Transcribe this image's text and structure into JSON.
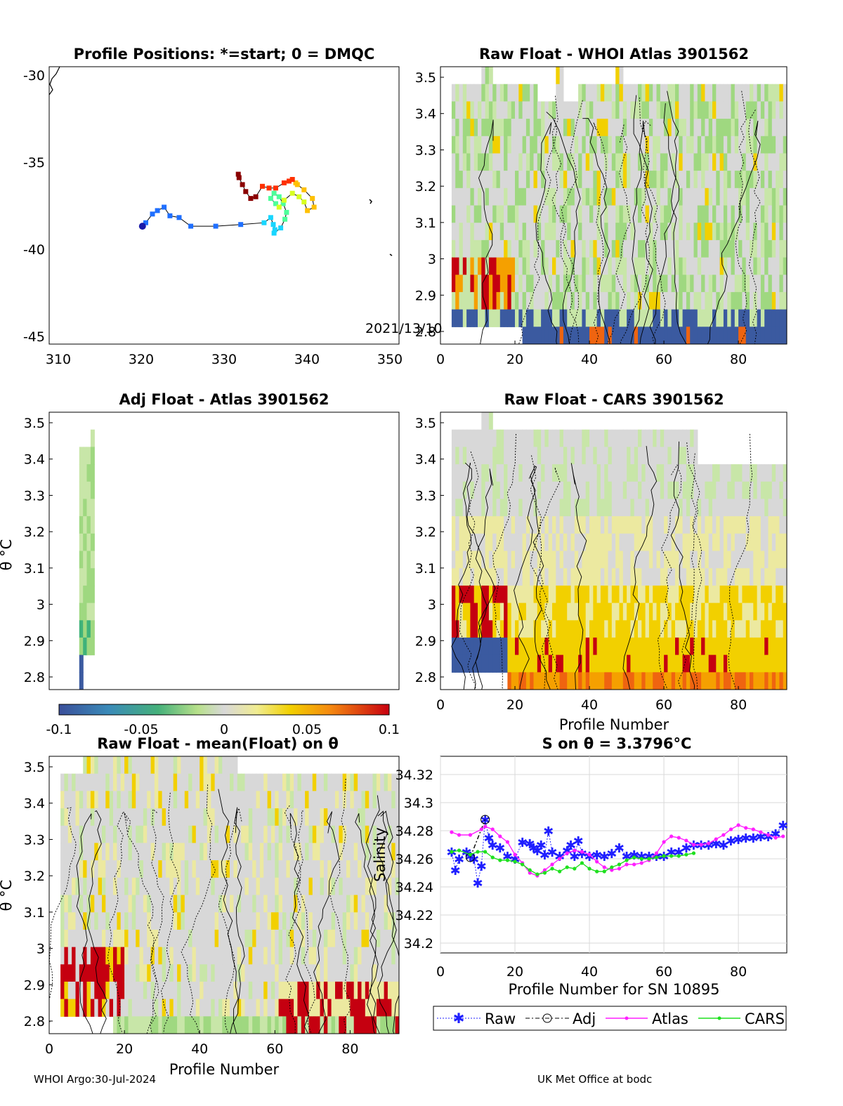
{
  "footer": {
    "left": "WHOI Argo:30-Jul-2024",
    "right": "UK Met Office at bodc"
  },
  "panels": {
    "map": {
      "title": "Profile Positions: *=start; 0 = DMQC",
      "xticks": [
        "310",
        "320",
        "330",
        "340",
        "350"
      ],
      "yticks": [
        "-30",
        "-35",
        "-40",
        "-45"
      ],
      "annotation": "2021/13/10"
    },
    "whoi": {
      "title": "Raw Float - WHOI Atlas  3901562"
    },
    "adj": {
      "title": "Adj Float - Atlas  3901562",
      "ylabel": "θ °C"
    },
    "cars": {
      "title": "Raw Float - CARS  3901562",
      "xlabel": "Profile Number"
    },
    "mean": {
      "title": "Raw Float - mean(Float) on θ",
      "ylabel": "θ °C",
      "xlabel": "Profile Number"
    },
    "sal": {
      "title": "S on θ = 3.3796°C",
      "ylabel": "Salinity",
      "xlabel": "Profile Number for SN 10895"
    }
  },
  "theta_ticks": [
    "3.5",
    "3.4",
    "3.3",
    "3.2",
    "3.1",
    "3",
    "2.9",
    "2.8"
  ],
  "profile_ticks": [
    "0",
    "20",
    "40",
    "60",
    "80"
  ],
  "colorbar": {
    "ticks": [
      "-0.1",
      "-0.05",
      "0",
      "0.05",
      "0.1"
    ]
  },
  "legend": [
    "Raw",
    "Adj",
    "Atlas",
    "CARS"
  ],
  "colors": {
    "raw": "#1f1fff",
    "adj": "#000000",
    "atlas": "#ff1fff",
    "cars": "#1fe01f"
  },
  "chart_data": [
    {
      "type": "scatter",
      "name": "track",
      "title": "Profile Positions: *=start; 0 = DMQC",
      "xlim": [
        309,
        351
      ],
      "ylim": [
        -45.5,
        -29.5
      ],
      "x": [
        320.2,
        320.6,
        321.4,
        322.0,
        322.8,
        323.5,
        324.6,
        326.0,
        329.0,
        332.0,
        334.8,
        335.6,
        335.9,
        336.1,
        336.0,
        336.8,
        337.3,
        337.5,
        337.1,
        336.6,
        336.0,
        335.6,
        336.2,
        336.6,
        337.2,
        338.2,
        339.0,
        339.6,
        340.0,
        340.8,
        340.6,
        339.6,
        338.8,
        338.6,
        338.2,
        337.8,
        337.2,
        336.2,
        335.4,
        334.6,
        333.8,
        333.2,
        332.6,
        332.2,
        331.8,
        331.7
      ],
      "y": [
        -38.7,
        -38.5,
        -38.0,
        -37.8,
        -37.6,
        -38.1,
        -38.2,
        -38.7,
        -38.7,
        -38.6,
        -38.5,
        -38.2,
        -38.6,
        -38.9,
        -39.1,
        -38.8,
        -38.3,
        -37.9,
        -37.4,
        -37.0,
        -36.8,
        -37.1,
        -37.4,
        -37.6,
        -37.2,
        -36.8,
        -37.0,
        -37.3,
        -37.8,
        -37.6,
        -37.1,
        -36.6,
        -36.3,
        -36.2,
        -36.0,
        -36.1,
        -36.2,
        -36.5,
        -36.5,
        -36.4,
        -37.0,
        -37.1,
        -36.7,
        -36.3,
        -35.9,
        -35.7
      ]
    },
    {
      "type": "line",
      "name": "salinity",
      "title": "S on θ = 3.3796°C",
      "xlabel": "Profile Number for SN 10895",
      "ylabel": "Salinity",
      "xlim": [
        0,
        93
      ],
      "ylim": [
        34.193,
        34.333
      ],
      "series": [
        {
          "name": "Raw",
          "x": [
            3,
            4,
            5,
            7,
            8,
            9,
            10,
            11,
            12,
            13,
            14,
            16,
            18,
            20,
            22,
            24,
            25,
            26,
            27,
            28,
            29,
            30,
            32,
            34,
            35,
            36,
            37,
            38,
            40,
            42,
            44,
            46,
            48,
            50,
            52,
            54,
            56,
            58,
            60,
            62,
            64,
            66,
            68,
            70,
            72,
            74,
            76,
            78,
            80,
            82,
            84,
            86,
            88,
            90,
            92
          ],
          "y": [
            34.265,
            34.252,
            34.26,
            34.265,
            34.262,
            34.26,
            34.243,
            34.255,
            34.288,
            34.275,
            34.27,
            34.268,
            34.262,
            34.26,
            34.272,
            34.271,
            34.268,
            34.266,
            34.27,
            34.263,
            34.28,
            34.265,
            34.262,
            34.266,
            34.27,
            34.262,
            34.273,
            34.264,
            34.262,
            34.263,
            34.262,
            34.264,
            34.268,
            34.262,
            34.263,
            34.262,
            34.262,
            34.262,
            34.262,
            34.265,
            34.265,
            34.268,
            34.27,
            34.27,
            34.27,
            34.271,
            34.27,
            34.273,
            34.274,
            34.275,
            34.275,
            34.276,
            34.276,
            34.278,
            34.284
          ]
        },
        {
          "name": "Adj",
          "x": [
            8,
            12
          ],
          "y": [
            34.261,
            34.288
          ]
        },
        {
          "name": "Atlas",
          "x": [
            3,
            5,
            8,
            11,
            12,
            14,
            16,
            18,
            20,
            22,
            24,
            26,
            28,
            30,
            32,
            34,
            36,
            38,
            40,
            42,
            44,
            46,
            48,
            50,
            52,
            54,
            56,
            58,
            60,
            62,
            64,
            66,
            68,
            70,
            72,
            74,
            76,
            78,
            80,
            82,
            84,
            86,
            88,
            90,
            92
          ],
          "y": [
            34.279,
            34.277,
            34.277,
            34.281,
            34.283,
            34.281,
            34.276,
            34.272,
            34.263,
            34.257,
            34.25,
            34.248,
            34.252,
            34.256,
            34.26,
            34.264,
            34.266,
            34.265,
            34.263,
            34.258,
            34.254,
            34.252,
            34.253,
            34.256,
            34.256,
            34.257,
            34.259,
            34.264,
            34.272,
            34.276,
            34.275,
            34.273,
            34.27,
            34.27,
            34.271,
            34.274,
            34.277,
            34.281,
            34.284,
            34.282,
            34.281,
            34.279,
            34.277,
            34.275,
            34.276
          ]
        },
        {
          "name": "CARS",
          "x": [
            3,
            5,
            8,
            10,
            12,
            14,
            16,
            18,
            20,
            22,
            24,
            26,
            28,
            30,
            32,
            34,
            36,
            38,
            40,
            42,
            44,
            46,
            48,
            50,
            52,
            54,
            56,
            58,
            60,
            62,
            64,
            66,
            68
          ],
          "y": [
            34.265,
            34.266,
            34.263,
            34.265,
            34.265,
            34.261,
            34.259,
            34.259,
            34.258,
            34.256,
            34.252,
            34.249,
            34.25,
            34.253,
            34.251,
            34.254,
            34.253,
            34.257,
            34.253,
            34.251,
            34.251,
            34.254,
            34.256,
            34.259,
            34.261,
            34.26,
            34.26,
            34.261,
            34.262,
            34.262,
            34.262,
            34.263,
            34.264
          ]
        }
      ]
    }
  ]
}
